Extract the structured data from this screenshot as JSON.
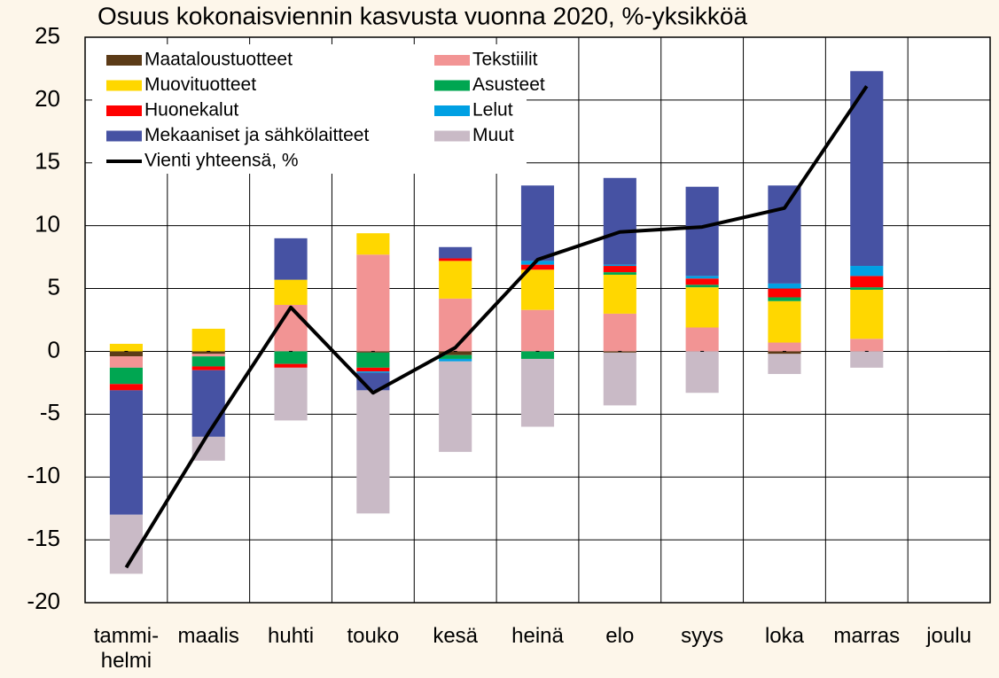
{
  "chart_data": {
    "type": "bar",
    "title": "Osuus kokonaisviennin kasvusta vuonna 2020, %-yksikköä",
    "categories": [
      "tammi-helmi",
      "maalis",
      "huhti",
      "touko",
      "kesä",
      "heinä",
      "elo",
      "syys",
      "loka",
      "marras",
      "joulu"
    ],
    "series": [
      {
        "name": "Maataloustuotteet",
        "color": "#5c3b17",
        "values": [
          -0.4,
          -0.2,
          0,
          -0.1,
          -0.3,
          0,
          -0.1,
          0,
          -0.2,
          0,
          null
        ]
      },
      {
        "name": "Tekstiilit",
        "color": "#f29494",
        "values": [
          -0.9,
          -0.2,
          3.7,
          7.7,
          4.2,
          3.3,
          3.0,
          1.9,
          0.7,
          1.0,
          null
        ]
      },
      {
        "name": "Muovituotteet",
        "color": "#ffd700",
        "values": [
          0.6,
          1.8,
          2.0,
          1.7,
          3.0,
          3.2,
          3.1,
          3.2,
          3.3,
          3.9,
          null
        ]
      },
      {
        "name": "Asusteet",
        "color": "#00a651",
        "values": [
          -1.3,
          -0.8,
          -1.0,
          -1.2,
          -0.3,
          -0.6,
          0.2,
          0.2,
          0.3,
          0.2,
          null
        ]
      },
      {
        "name": "Huonekalut",
        "color": "#ff0000",
        "values": [
          -0.5,
          -0.3,
          -0.3,
          -0.3,
          0.2,
          0.4,
          0.5,
          0.5,
          0.7,
          0.9,
          null
        ]
      },
      {
        "name": "Lelut",
        "color": "#00a0e3",
        "values": [
          0,
          0,
          0,
          -0.1,
          -0.2,
          0.3,
          0.1,
          0.2,
          0.4,
          0.8,
          null
        ]
      },
      {
        "name": "Mekaaniset ja sähkölaitteet",
        "color": "#4652a3",
        "values": [
          -9.9,
          -5.3,
          3.3,
          -1.4,
          0.9,
          6.0,
          6.9,
          7.1,
          7.8,
          15.5,
          null
        ]
      },
      {
        "name": "Muut",
        "color": "#c9bac6",
        "values": [
          -4.7,
          -1.9,
          -4.2,
          -9.8,
          -7.2,
          -5.4,
          -4.2,
          -3.3,
          -1.6,
          -1.3,
          null
        ]
      },
      {
        "name": "Vienti yhteensä, %",
        "type": "line",
        "color": "#000000",
        "values": [
          -17.2,
          -6.5,
          3.5,
          -3.3,
          0.3,
          7.3,
          9.5,
          9.9,
          11.4,
          21.1,
          null
        ]
      }
    ],
    "ylim": [
      -20,
      25
    ],
    "yticks": [
      -20,
      -15,
      -10,
      -5,
      0,
      5,
      10,
      15,
      20,
      25
    ],
    "grid": true,
    "stacked": true
  }
}
